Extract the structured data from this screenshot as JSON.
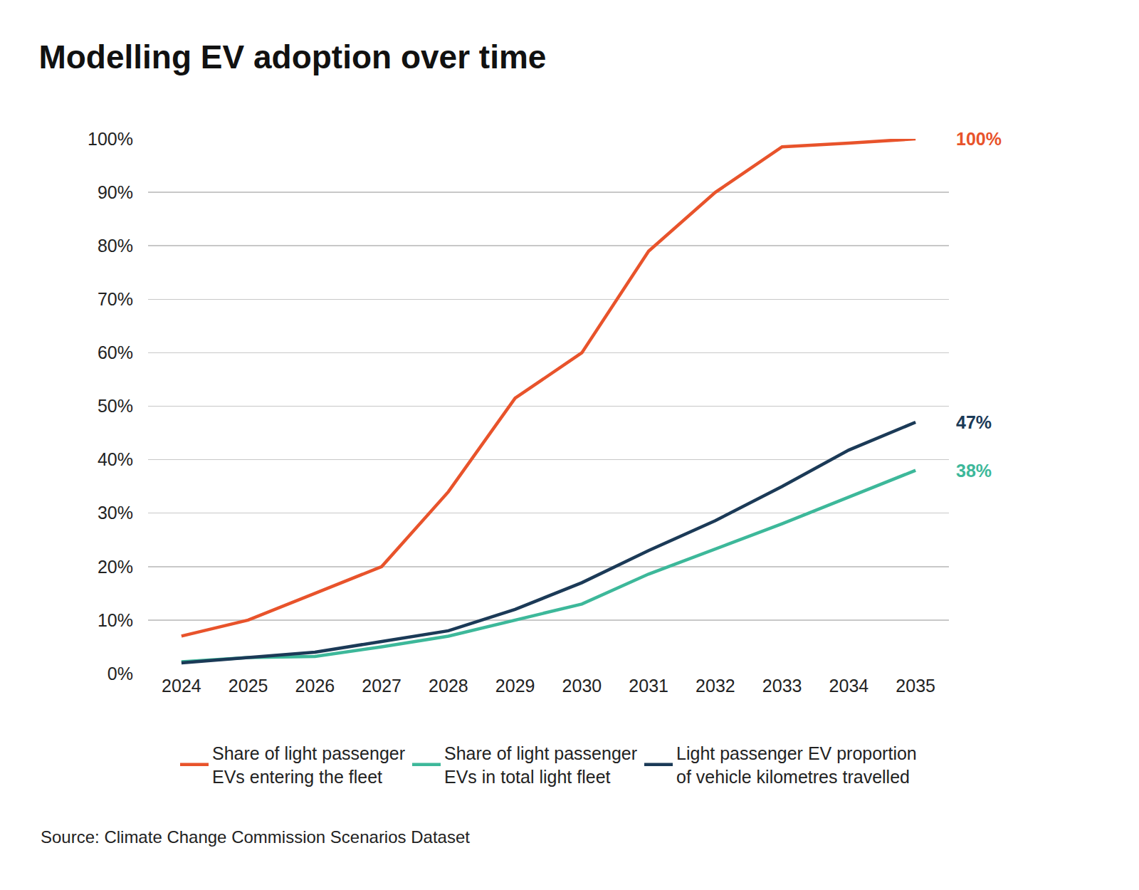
{
  "chart_data": {
    "type": "line",
    "title": "Modelling EV adoption over time",
    "source": "Source: Climate Change Commission Scenarios Dataset",
    "categories": [
      "2024",
      "2025",
      "2026",
      "2027",
      "2028",
      "2029",
      "2030",
      "2031",
      "2032",
      "2033",
      "2034",
      "2035"
    ],
    "series": [
      {
        "name": "Share of light passenger EVs entering the fleet",
        "color": "#e8532b",
        "values": [
          7,
          10,
          15,
          20,
          34,
          51.5,
          60,
          79,
          90,
          98.5,
          99.2,
          100
        ],
        "value_labels": [
          null,
          null,
          null,
          null,
          null,
          null,
          null,
          null,
          null,
          null,
          null,
          "100%"
        ]
      },
      {
        "name": "Share of light passenger EVs in total light fleet",
        "color": "#3db89a",
        "values": [
          2.2,
          3,
          3.2,
          5,
          7,
          10,
          13,
          18.6,
          23.3,
          28,
          33,
          38
        ],
        "value_labels": [
          null,
          null,
          null,
          null,
          null,
          null,
          null,
          null,
          null,
          null,
          null,
          "38%"
        ]
      },
      {
        "name": "Light passenger EV proportion of vehicle kilometres travelled",
        "color": "#1b3a57",
        "values": [
          2,
          3,
          4,
          6,
          8,
          12,
          17,
          23,
          28.6,
          35,
          41.8,
          47
        ],
        "value_labels": [
          null,
          null,
          null,
          null,
          null,
          null,
          null,
          null,
          null,
          null,
          null,
          "47%"
        ]
      }
    ],
    "ylim": [
      0,
      100
    ],
    "yticks": [
      {
        "value": 0,
        "label": "0%"
      },
      {
        "value": 10,
        "label": "10%"
      },
      {
        "value": 20,
        "label": "20%"
      },
      {
        "value": 30,
        "label": "30%"
      },
      {
        "value": 40,
        "label": "40%"
      },
      {
        "value": 50,
        "label": "50%"
      },
      {
        "value": 60,
        "label": "60%"
      },
      {
        "value": 70,
        "label": "70%"
      },
      {
        "value": 80,
        "label": "80%"
      },
      {
        "value": 90,
        "label": "90%"
      },
      {
        "value": 100,
        "label": "100%"
      }
    ],
    "grid": true,
    "legend": "bottom"
  }
}
